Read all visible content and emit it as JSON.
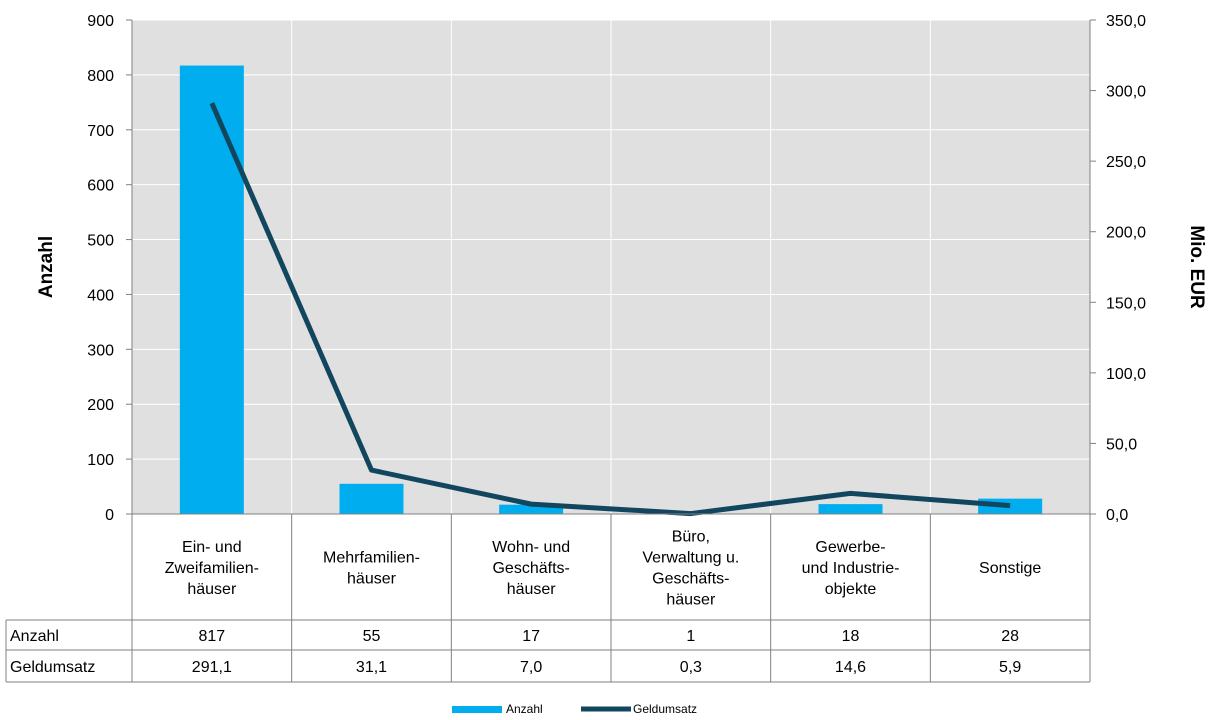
{
  "chart_data": {
    "type": "bar+line",
    "categories": [
      [
        "Ein- und",
        "Zweifamilien-",
        "häuser"
      ],
      [
        "Mehrfamilien-",
        "häuser"
      ],
      [
        "Wohn- und",
        "Geschäfts-",
        "häuser"
      ],
      [
        "Büro,",
        "Verwaltung u.",
        "Geschäfts-",
        "häuser"
      ],
      [
        "Gewerbe-",
        "und Industrie-",
        "objekte"
      ],
      [
        "Sonstige"
      ]
    ],
    "series": [
      {
        "name": "Anzahl",
        "type": "bar",
        "axis": "left",
        "values": [
          817,
          55,
          17,
          1,
          18,
          28
        ],
        "color": "#00AEEF"
      },
      {
        "name": "Geldumsatz",
        "type": "line",
        "axis": "right",
        "values": [
          291.1,
          31.1,
          7.0,
          0.3,
          14.6,
          5.9
        ],
        "color": "#12465E"
      }
    ],
    "table": {
      "rows": [
        {
          "label": "Anzahl",
          "cells": [
            "817",
            "55",
            "17",
            "1",
            "18",
            "28"
          ]
        },
        {
          "label": "Geldumsatz",
          "cells": [
            "291,1",
            "31,1",
            "7,0",
            "0,3",
            "14,6",
            "5,9"
          ]
        }
      ]
    },
    "y_left": {
      "label": "Anzahl",
      "min": 0,
      "max": 900,
      "step": 100,
      "ticks": [
        "0",
        "100",
        "200",
        "300",
        "400",
        "500",
        "600",
        "700",
        "800",
        "900"
      ]
    },
    "y_right": {
      "label": "Mio. EUR",
      "min": 0,
      "max": 350,
      "step": 50,
      "ticks": [
        "0,0",
        "50,0",
        "100,0",
        "150,0",
        "200,0",
        "250,0",
        "300,0",
        "350,0"
      ]
    },
    "grid": true,
    "legend": {
      "position": "bottom",
      "entries": [
        "Anzahl",
        "Geldumsatz"
      ]
    },
    "colors": {
      "plot_bg": "#E0E0E0",
      "grid": "#FFFFFF",
      "bar": "#00AEEF",
      "line": "#12465E"
    }
  }
}
